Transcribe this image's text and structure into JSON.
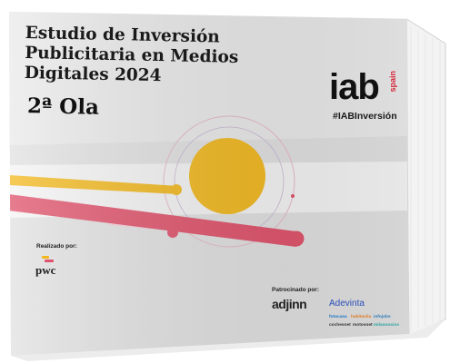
{
  "cover": {
    "title_lines": [
      "Estudio de Inversión",
      "Publicitaria en Medios",
      "Digitales 2024"
    ],
    "edition": "2ª Ola"
  },
  "logo": {
    "iab": "iab",
    "spain": "spain"
  },
  "hashtag": "#IABInversión",
  "credits": {
    "realizado_label": "Realizado por:",
    "realizado_brand": "pwc",
    "patrocinado_label": "Patrocinado por:",
    "sponsors": {
      "adjinn": "adjinn",
      "adevinta": "Adevinta",
      "row1": [
        "fotocasa",
        "habitaclia",
        "infojobs"
      ],
      "row2": [
        "cochesnet",
        "motosnet",
        "milanuncios"
      ]
    }
  },
  "colors": {
    "accent_yellow": "#f2b81c",
    "accent_pink": "#e0516a",
    "light_pink": "#f5cdd8",
    "iab_red": "#d6263a",
    "cover_gray": "#dcdcdc",
    "pages": "#f4f4f4"
  }
}
